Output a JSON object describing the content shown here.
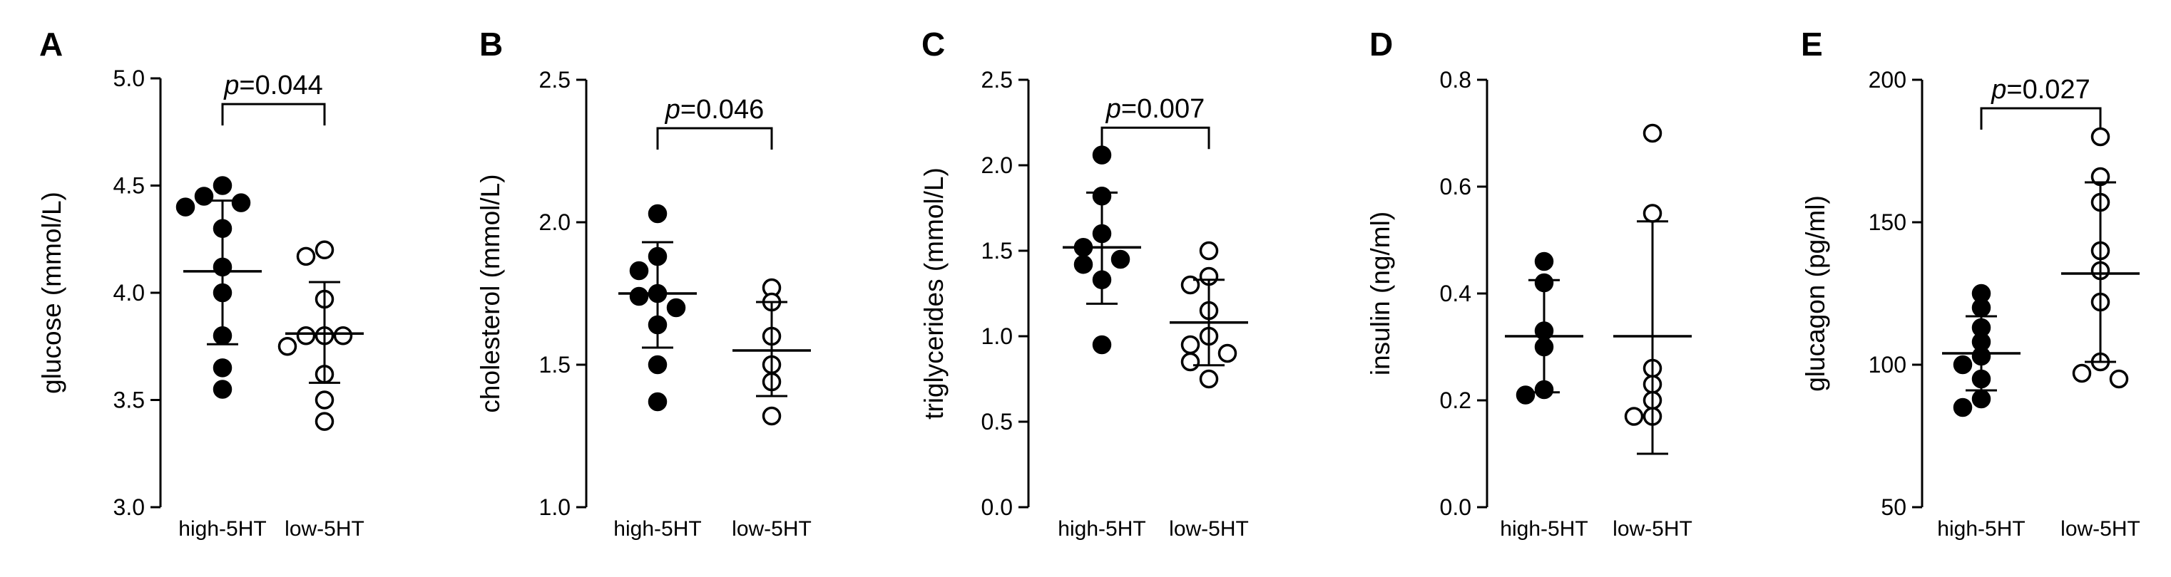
{
  "chart_data": [
    {
      "panel": "A",
      "type": "scatter",
      "ylabel": "glucose (mmol/L)",
      "ylim": [
        3.0,
        5.0
      ],
      "yticks": [
        3.0,
        3.5,
        4.0,
        4.5,
        5.0
      ],
      "tick_decimals": 1,
      "categories": [
        "high-5HT",
        "low-5HT"
      ],
      "groups": [
        {
          "name": "high-5HT",
          "marker": "filled",
          "mean": 4.1,
          "sd_low": 3.76,
          "sd_high": 4.43,
          "points": [
            4.5,
            4.45,
            4.42,
            4.4,
            4.3,
            4.12,
            4.0,
            3.8,
            3.65,
            3.55
          ]
        },
        {
          "name": "low-5HT",
          "marker": "open",
          "mean": 3.81,
          "sd_low": 3.58,
          "sd_high": 4.05,
          "points": [
            4.2,
            4.17,
            3.97,
            3.8,
            3.8,
            3.8,
            3.75,
            3.62,
            3.5,
            3.4
          ]
        }
      ],
      "comparison": {
        "prefix": "p",
        "text": "=0.044",
        "bracket_y": 4.88
      }
    },
    {
      "panel": "B",
      "type": "scatter",
      "ylabel": "cholesterol (mmol/L)",
      "ylim": [
        1.0,
        2.5
      ],
      "yticks": [
        1.0,
        1.5,
        2.0,
        2.5
      ],
      "tick_decimals": 1,
      "categories": [
        "high-5HT",
        "low-5HT"
      ],
      "groups": [
        {
          "name": "high-5HT",
          "marker": "filled",
          "mean": 1.75,
          "sd_low": 1.56,
          "sd_high": 1.93,
          "points": [
            2.03,
            1.88,
            1.83,
            1.75,
            1.74,
            1.7,
            1.64,
            1.5,
            1.37
          ]
        },
        {
          "name": "low-5HT",
          "marker": "open",
          "mean": 1.55,
          "sd_low": 1.39,
          "sd_high": 1.72,
          "points": [
            1.77,
            1.72,
            1.6,
            1.5,
            1.44,
            1.32
          ]
        }
      ],
      "comparison": {
        "prefix": "p",
        "text": "=0.046",
        "bracket_y": 2.33
      }
    },
    {
      "panel": "C",
      "type": "scatter",
      "ylabel": "triglycerides (mmol/L)",
      "ylim": [
        0.0,
        2.5
      ],
      "yticks": [
        0.0,
        0.5,
        1.0,
        1.5,
        2.0,
        2.5
      ],
      "tick_decimals": 1,
      "categories": [
        "high-5HT",
        "low-5HT"
      ],
      "groups": [
        {
          "name": "high-5HT",
          "marker": "filled",
          "mean": 1.52,
          "sd_low": 1.19,
          "sd_high": 1.84,
          "points": [
            2.06,
            1.82,
            1.6,
            1.52,
            1.45,
            1.42,
            1.33,
            0.95
          ]
        },
        {
          "name": "low-5HT",
          "marker": "open",
          "mean": 1.08,
          "sd_low": 0.83,
          "sd_high": 1.33,
          "points": [
            1.5,
            1.35,
            1.3,
            1.15,
            1.0,
            0.95,
            0.9,
            0.85,
            0.75
          ]
        }
      ],
      "comparison": {
        "prefix": "p",
        "text": "=0.007",
        "bracket_y": 2.22
      }
    },
    {
      "panel": "D",
      "type": "scatter",
      "ylabel": "insulin (ng/ml)",
      "ylim": [
        0.0,
        0.8
      ],
      "yticks": [
        0.0,
        0.2,
        0.4,
        0.6,
        0.8
      ],
      "tick_decimals": 1,
      "categories": [
        "high-5HT",
        "low-5HT"
      ],
      "groups": [
        {
          "name": "high-5HT",
          "marker": "filled",
          "mean": 0.32,
          "sd_low": 0.215,
          "sd_high": 0.425,
          "points": [
            0.46,
            0.42,
            0.33,
            0.3,
            0.22,
            0.21
          ]
        },
        {
          "name": "low-5HT",
          "marker": "open",
          "mean": 0.32,
          "sd_low": 0.1,
          "sd_high": 0.535,
          "points": [
            0.7,
            0.55,
            0.26,
            0.23,
            0.2,
            0.17,
            0.17
          ]
        }
      ],
      "comparison": null
    },
    {
      "panel": "E",
      "type": "scatter",
      "ylabel": "glucagon (pg/ml)",
      "ylim": [
        50,
        200
      ],
      "yticks": [
        50,
        100,
        150,
        200
      ],
      "tick_decimals": 0,
      "categories": [
        "high-5HT",
        "low-5HT"
      ],
      "groups": [
        {
          "name": "high-5HT",
          "marker": "filled",
          "mean": 104,
          "sd_low": 91,
          "sd_high": 117,
          "points": [
            125,
            120,
            113,
            108,
            103,
            100,
            95,
            88,
            85
          ]
        },
        {
          "name": "low-5HT",
          "marker": "open",
          "mean": 132,
          "sd_low": 101,
          "sd_high": 164,
          "points": [
            180,
            166,
            157,
            140,
            133,
            122,
            101,
            97,
            95
          ]
        }
      ],
      "comparison": {
        "prefix": "p",
        "text": "=0.027",
        "bracket_y": 190
      }
    }
  ]
}
